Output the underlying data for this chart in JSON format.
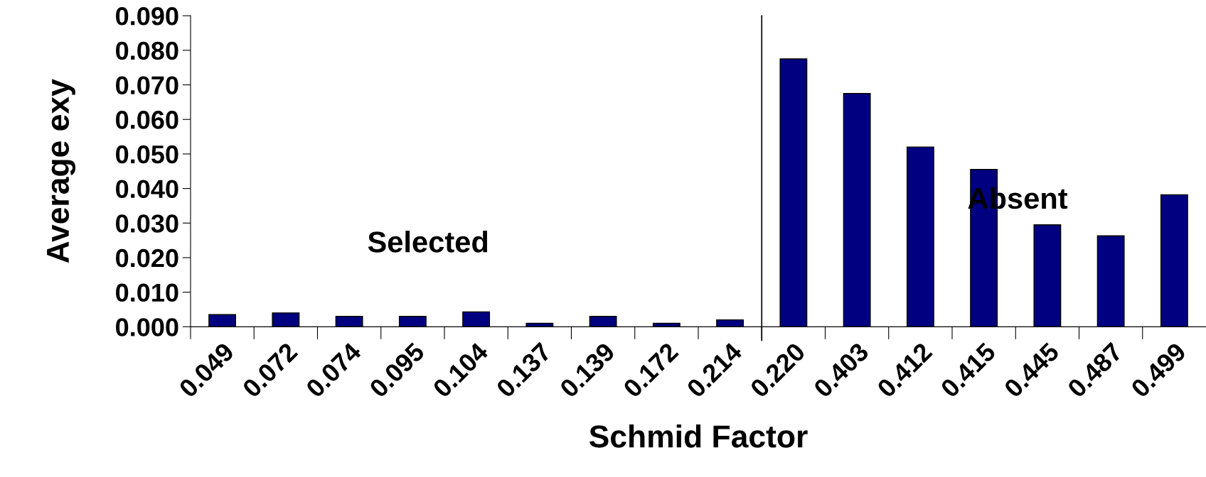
{
  "chart_data": {
    "type": "bar",
    "xlabel": "Schmid Factor",
    "ylabel": "Average exy",
    "categories": [
      "0.049",
      "0.072",
      "0.074",
      "0.095",
      "0.104",
      "0.137",
      "0.139",
      "0.172",
      "0.214",
      "0.220",
      "0.403",
      "0.412",
      "0.415",
      "0.445",
      "0.487",
      "0.499"
    ],
    "values": [
      0.0035,
      0.004,
      0.003,
      0.003,
      0.0043,
      0.001,
      0.003,
      0.001,
      0.002,
      0.0775,
      0.0675,
      0.052,
      0.0455,
      0.0295,
      0.0263,
      0.0382
    ],
    "color": "#000080",
    "ylim": [
      0,
      0.09
    ],
    "yticks": [
      {
        "value": 0,
        "label": "0.000"
      },
      {
        "value": 0.01,
        "label": "0.010"
      },
      {
        "value": 0.02,
        "label": "0.020"
      },
      {
        "value": 0.03,
        "label": "0.030"
      },
      {
        "value": 0.04,
        "label": "0.040"
      },
      {
        "value": 0.05,
        "label": "0.050"
      },
      {
        "value": 0.06,
        "label": "0.060"
      },
      {
        "value": 0.07,
        "label": "0.070"
      },
      {
        "value": 0.08,
        "label": "0.080"
      },
      {
        "value": 0.09,
        "label": "0.090"
      }
    ],
    "annotations": [
      "Selected",
      "Absent"
    ],
    "grid": false,
    "legend": false
  }
}
